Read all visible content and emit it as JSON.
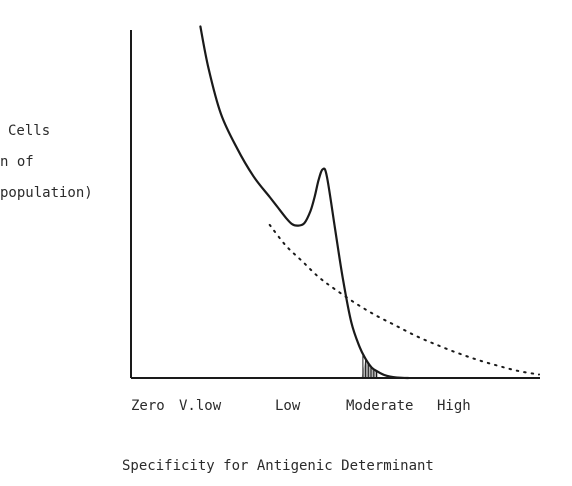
{
  "chart_data": {
    "type": "line",
    "title": "",
    "xlabel": "Specificity for Antigenic Determinant",
    "ylabel_lines": [
      "Cells",
      "n of",
      "population)"
    ],
    "tick_labels": [
      "Zero",
      "V.low",
      "Low",
      "Moderate",
      "High"
    ],
    "grid": false,
    "legend": "none",
    "xlim": [
      0,
      10
    ],
    "ylim": [
      0,
      10
    ],
    "series": [
      {
        "style": "solid",
        "x": [
          1.7,
          1.9,
          2.2,
          2.6,
          3.0,
          3.4,
          3.6,
          3.8,
          3.95,
          4.1,
          4.25,
          4.4,
          4.5,
          4.6,
          4.7,
          4.8,
          5.0,
          5.2,
          5.4,
          5.6,
          5.75,
          5.9,
          6.05,
          6.2,
          6.35,
          6.5,
          6.65,
          6.8
        ],
        "y": [
          10.1,
          8.9,
          7.6,
          6.6,
          5.8,
          5.2,
          4.9,
          4.6,
          4.42,
          4.38,
          4.45,
          4.8,
          5.2,
          5.7,
          6.0,
          5.8,
          4.3,
          2.8,
          1.6,
          0.9,
          0.55,
          0.3,
          0.18,
          0.09,
          0.04,
          0.015,
          0.005,
          0.0
        ]
      },
      {
        "style": "dotted",
        "x": [
          3.4,
          3.8,
          4.2,
          4.6,
          5.0,
          5.5,
          6.0,
          6.5,
          7.0,
          7.5,
          8.0,
          8.5,
          9.0,
          9.5,
          10.0
        ],
        "y": [
          4.4,
          3.8,
          3.35,
          2.9,
          2.55,
          2.15,
          1.8,
          1.5,
          1.2,
          0.95,
          0.72,
          0.52,
          0.35,
          0.2,
          0.1
        ]
      }
    ],
    "shaded_region": {
      "x_start": 5.65,
      "x_end": 6.05
    },
    "colors": {
      "line": "#1a1a1a",
      "axis": "#1a1a1a",
      "text": "#2b2b2b"
    }
  }
}
